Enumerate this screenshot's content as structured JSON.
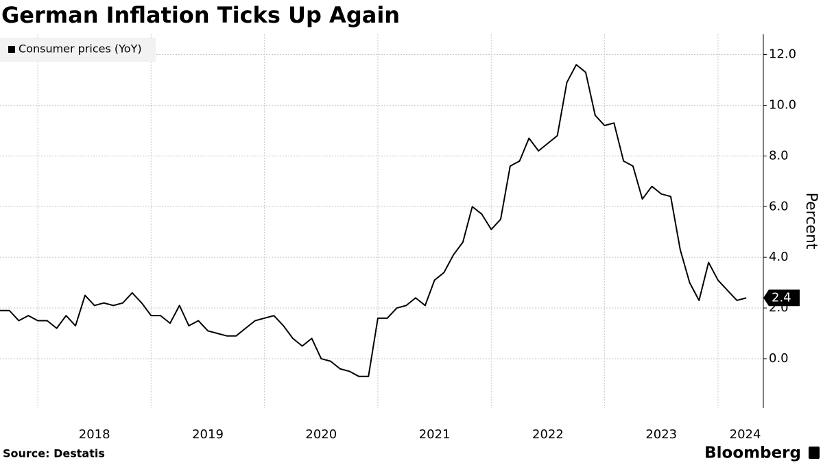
{
  "chart_data": {
    "type": "line",
    "title": "German Inflation Ticks Up Again",
    "y_label": "Percent",
    "source": "Source: Destatis",
    "brand": "Bloomberg",
    "x": [
      2017.667,
      2017.75,
      2017.833,
      2017.917,
      2018,
      2018.083,
      2018.167,
      2018.25,
      2018.333,
      2018.417,
      2018.5,
      2018.583,
      2018.667,
      2018.75,
      2018.833,
      2018.917,
      2019,
      2019.083,
      2019.167,
      2019.25,
      2019.333,
      2019.417,
      2019.5,
      2019.583,
      2019.667,
      2019.75,
      2019.833,
      2019.917,
      2020,
      2020.083,
      2020.167,
      2020.25,
      2020.333,
      2020.417,
      2020.5,
      2020.583,
      2020.667,
      2020.75,
      2020.833,
      2020.917,
      2021,
      2021.083,
      2021.167,
      2021.25,
      2021.333,
      2021.417,
      2021.5,
      2021.583,
      2021.667,
      2021.75,
      2021.833,
      2021.917,
      2022,
      2022.083,
      2022.167,
      2022.25,
      2022.333,
      2022.417,
      2022.5,
      2022.583,
      2022.667,
      2022.75,
      2022.833,
      2022.917,
      2023,
      2023.083,
      2023.167,
      2023.25,
      2023.333,
      2023.417,
      2023.5,
      2023.583,
      2023.667,
      2023.75,
      2023.833,
      2023.917,
      2024,
      2024.083,
      2024.167,
      2024.25
    ],
    "series": [
      {
        "name": "Consumer prices (YoY)",
        "color": "#000000",
        "values": [
          1.9,
          1.9,
          1.5,
          1.7,
          1.5,
          1.5,
          1.2,
          1.7,
          1.3,
          2.5,
          2.1,
          2.2,
          2.1,
          2.2,
          2.6,
          2.2,
          1.7,
          1.7,
          1.4,
          2.1,
          1.3,
          1.5,
          1.1,
          1.0,
          0.9,
          0.9,
          1.2,
          1.5,
          1.6,
          1.7,
          1.3,
          0.8,
          0.5,
          0.8,
          0.0,
          -0.1,
          -0.4,
          -0.5,
          -0.7,
          -0.7,
          1.6,
          1.6,
          2.0,
          2.1,
          2.4,
          2.1,
          3.1,
          3.4,
          4.1,
          4.6,
          6.0,
          5.7,
          5.1,
          5.5,
          7.6,
          7.8,
          8.7,
          8.2,
          8.5,
          8.8,
          10.9,
          11.6,
          11.3,
          9.6,
          9.2,
          9.3,
          7.8,
          7.6,
          6.3,
          6.8,
          6.5,
          6.4,
          4.3,
          3.0,
          2.3,
          3.8,
          3.1,
          2.7,
          2.3,
          2.4
        ]
      }
    ],
    "xlim": [
      2017.667,
      2024.4
    ],
    "xticks": [
      {
        "value": 2018.5,
        "label": "2018"
      },
      {
        "value": 2019.5,
        "label": "2019"
      },
      {
        "value": 2020.5,
        "label": "2020"
      },
      {
        "value": 2021.5,
        "label": "2021"
      },
      {
        "value": 2022.5,
        "label": "2022"
      },
      {
        "value": 2023.5,
        "label": "2023"
      },
      {
        "value": 2024.24,
        "label": "2024"
      }
    ],
    "xgrid": [
      2018,
      2019,
      2020,
      2021,
      2022,
      2023,
      2024
    ],
    "ylim": [
      -1.95,
      12.8
    ],
    "yticks": [
      {
        "value": 0,
        "label": "0.0"
      },
      {
        "value": 2,
        "label": "2.0"
      },
      {
        "value": 4,
        "label": "4.0"
      },
      {
        "value": 6,
        "label": "6.0"
      },
      {
        "value": 8,
        "label": "8.0"
      },
      {
        "value": 10,
        "label": "10.0"
      },
      {
        "value": 12,
        "label": "12.0"
      }
    ],
    "grid": true
  }
}
